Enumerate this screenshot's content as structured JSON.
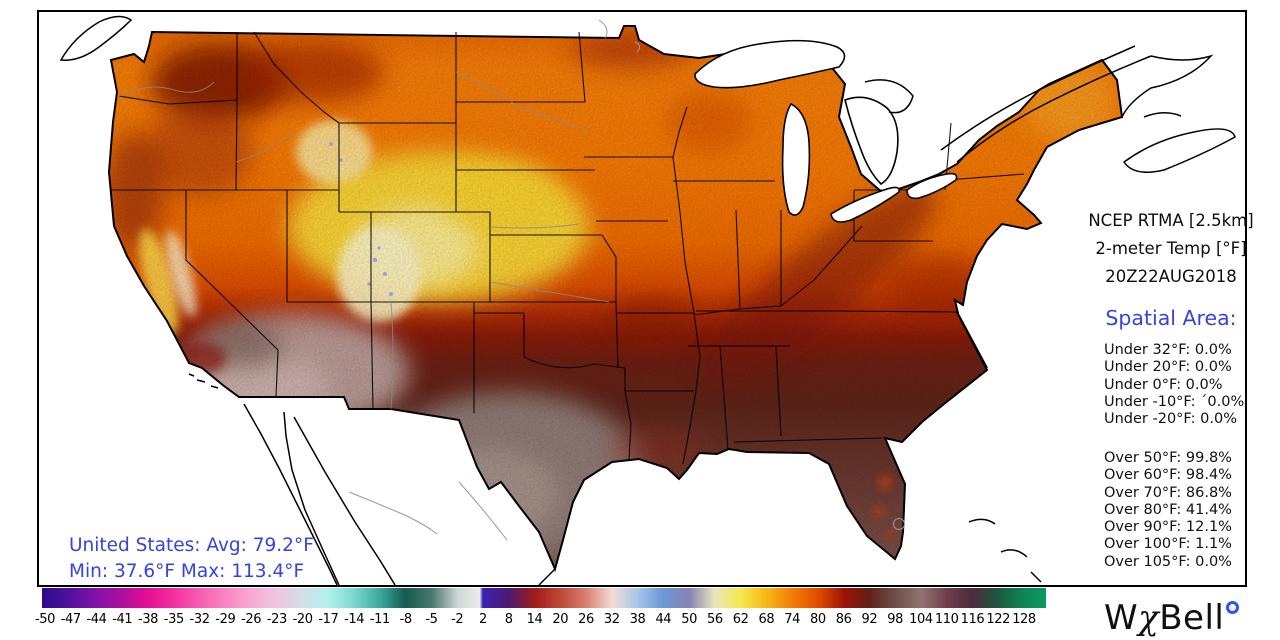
{
  "header": {
    "line1": "NCEP RTMA [2.5km]",
    "line2": "2-meter Temp [°F]",
    "line3": "20Z22AUG2018"
  },
  "spatial": {
    "heading": "Spatial Area:",
    "under": [
      "Under 32°F: 0.0%",
      "Under 20°F: 0.0%",
      "Under 0°F: 0.0%",
      "Under -10°F: ´0.0%",
      "Under -20°F: 0.0%"
    ],
    "over": [
      "Over 50°F: 99.8%",
      "Over 60°F: 98.4%",
      "Over 70°F: 86.8%",
      "Over 80°F: 41.4%",
      "Over 90°F: 12.1%",
      "Over 100°F: 1.1%",
      "Over 105°F: 0.0%"
    ]
  },
  "summary": {
    "line1": "United States: Avg:  79.2°F",
    "line2": "Min:  37.6°F Max: 113.4°F"
  },
  "colorbar": {
    "ticks": [
      "-50",
      "-47",
      "-44",
      "-41",
      "-38",
      "-35",
      "-32",
      "-29",
      "-26",
      "-23",
      "-20",
      "-17",
      "-14",
      "-11",
      "-8",
      "-5",
      "-2",
      "2",
      "8",
      "14",
      "20",
      "26",
      "32",
      "38",
      "44",
      "50",
      "56",
      "62",
      "68",
      "74",
      "80",
      "86",
      "92",
      "98",
      "104",
      "110",
      "116",
      "122",
      "128"
    ],
    "gradient": [
      {
        "p": 0,
        "c": "#2a0b86"
      },
      {
        "p": 0.3,
        "c": "#2f0d8d"
      },
      {
        "p": 2.9,
        "c": "#53109f"
      },
      {
        "p": 5.4,
        "c": "#8212ab"
      },
      {
        "p": 8.0,
        "c": "#ad0f9c"
      },
      {
        "p": 10.6,
        "c": "#e50f93"
      },
      {
        "p": 13.1,
        "c": "#f3309f"
      },
      {
        "p": 15.7,
        "c": "#f75db2"
      },
      {
        "p": 18.3,
        "c": "#f984c3"
      },
      {
        "p": 20.8,
        "c": "#f7a9d3"
      },
      {
        "p": 23.4,
        "c": "#f0c5e0"
      },
      {
        "p": 26.0,
        "c": "#cfe0e8"
      },
      {
        "p": 28.5,
        "c": "#b2f1ee"
      },
      {
        "p": 31.1,
        "c": "#79d7cf"
      },
      {
        "p": 33.7,
        "c": "#3aa89c"
      },
      {
        "p": 36.2,
        "c": "#155a50"
      },
      {
        "p": 38.8,
        "c": "#47776f"
      },
      {
        "p": 41.4,
        "c": "#cdd7d5"
      },
      {
        "p": 43.6,
        "c": "#e9edec"
      },
      {
        "p": 43.9,
        "c": "#3a23af"
      },
      {
        "p": 46.5,
        "c": "#4d1a71"
      },
      {
        "p": 49.1,
        "c": "#a01c18"
      },
      {
        "p": 51.6,
        "c": "#bf4737"
      },
      {
        "p": 54.2,
        "c": "#d98173"
      },
      {
        "p": 56.8,
        "c": "#f2dcd7"
      },
      {
        "p": 59.3,
        "c": "#a6c6ea"
      },
      {
        "p": 61.9,
        "c": "#6c97d6"
      },
      {
        "p": 64.5,
        "c": "#8684b2"
      },
      {
        "p": 67.0,
        "c": "#e9e5bf"
      },
      {
        "p": 69.6,
        "c": "#f6e94a"
      },
      {
        "p": 72.2,
        "c": "#f8b616"
      },
      {
        "p": 74.7,
        "c": "#f47d06"
      },
      {
        "p": 77.3,
        "c": "#e04d00"
      },
      {
        "p": 79.9,
        "c": "#9e1306"
      },
      {
        "p": 82.4,
        "c": "#5f2016"
      },
      {
        "p": 85.0,
        "c": "#6f4f49"
      },
      {
        "p": 87.6,
        "c": "#937371"
      },
      {
        "p": 90.1,
        "c": "#6f3e4b"
      },
      {
        "p": 92.7,
        "c": "#4d2b3d"
      },
      {
        "p": 95.3,
        "c": "#1c5a40"
      },
      {
        "p": 97.8,
        "c": "#0e8754"
      },
      {
        "p": 100,
        "c": "#0a9a5e"
      }
    ]
  },
  "logo": {
    "w": "W",
    "chi": "χ",
    "bell": "Bell"
  },
  "colors": {
    "accent_blue": "#3743d9",
    "logo_degree_blue": "#2457f5"
  }
}
